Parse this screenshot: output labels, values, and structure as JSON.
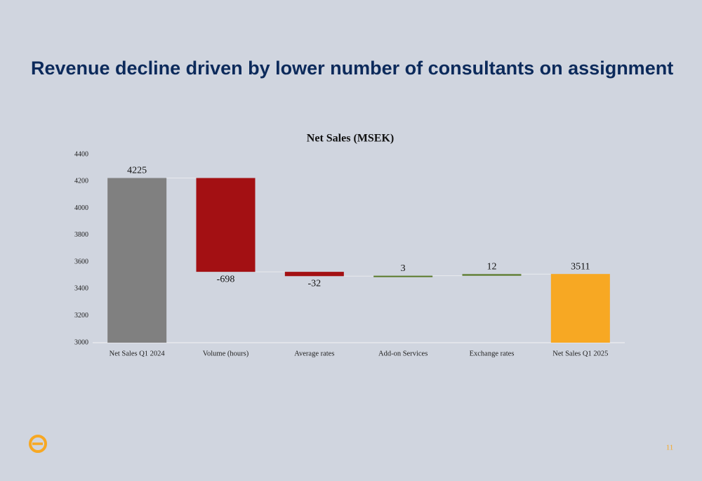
{
  "slide_title": "Revenue decline driven by lower number of consultants on assignment",
  "page_number": "11",
  "chart_data": {
    "type": "waterfall",
    "title": "Net Sales (MSEK)",
    "categories": [
      "Net Sales Q1 2024",
      "Volume (hours)",
      "Average rates",
      "Add-on Services",
      "Exchange rates",
      "Net Sales Q1 2025"
    ],
    "values": [
      4225,
      -698,
      -32,
      3,
      12,
      3511
    ],
    "colors": [
      "#808080",
      "#a31013",
      "#a31013",
      "#5b7b2b",
      "#5b7b2b",
      "#f7a823"
    ],
    "ylim": [
      3000,
      4400
    ],
    "yticks": [
      3000,
      3200,
      3400,
      3600,
      3800,
      4000,
      4200,
      4400
    ],
    "grid": false
  }
}
